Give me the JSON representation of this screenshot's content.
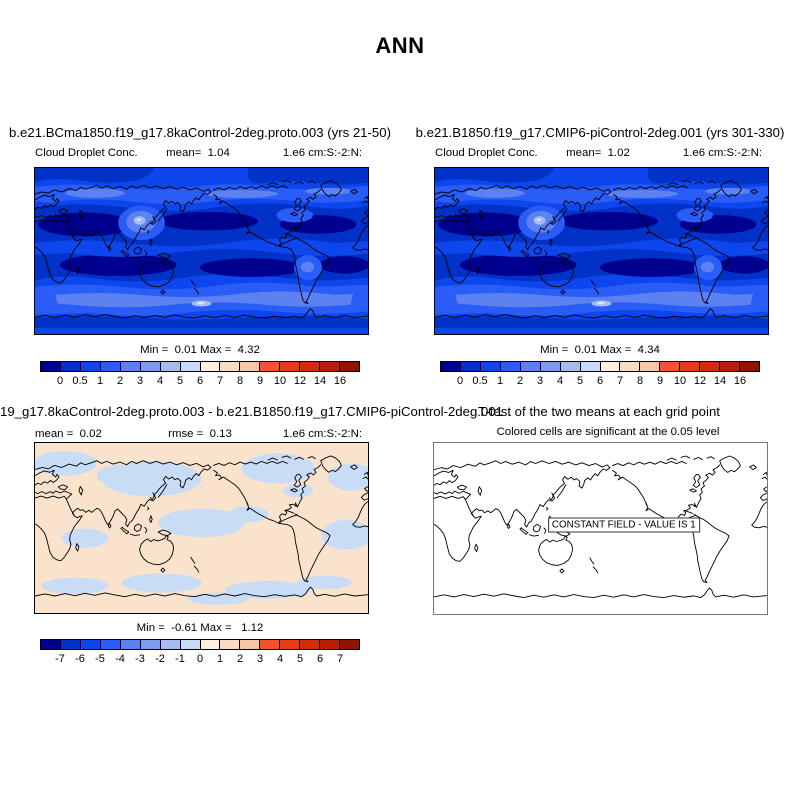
{
  "figure_title": "ANN",
  "colorbar_colors": [
    "#00008e",
    "#0032c8",
    "#0d46ec",
    "#2a5cf7",
    "#5b82f0",
    "#7d9cf0",
    "#a3bcf2",
    "#c9daf8",
    "#fdf0e2",
    "#fbdcc3",
    "#f8c5a5",
    "#f4512c",
    "#e93a16",
    "#d52b0a",
    "#bc1d04",
    "#8f1402"
  ],
  "chart_data": [
    {
      "type": "heatmap",
      "panel": "top-left",
      "title": "b.e21.BCma1850.f19_g17.8kaControl-2deg.proto.003 (yrs 21-50)",
      "variable": "Cloud Droplet Conc.",
      "units": "1.e6 cm:S:-2:N:",
      "mean": 1.04,
      "min": 0.01,
      "max": 4.32,
      "levels": [
        0,
        0.5,
        1,
        2,
        3,
        4,
        5,
        6,
        7,
        8,
        9,
        10,
        12,
        14,
        16
      ],
      "projection": "global cylindrical map, Pacific-centered",
      "palette": "blue-white-red"
    },
    {
      "type": "heatmap",
      "panel": "top-right",
      "title": "b.e21.B1850.f19_g17.CMIP6-piControl-2deg.001 (yrs 301-330)",
      "variable": "Cloud Droplet Conc.",
      "units": "1.e6 cm:S:-2:N:",
      "mean": 1.02,
      "min": 0.01,
      "max": 4.34,
      "levels": [
        0,
        0.5,
        1,
        2,
        3,
        4,
        5,
        6,
        7,
        8,
        9,
        10,
        12,
        14,
        16
      ],
      "projection": "global cylindrical map, Pacific-centered",
      "palette": "blue-white-red"
    },
    {
      "type": "heatmap",
      "panel": "bottom-left",
      "title": "19_g17.8kaControl-2deg.proto.003 - b.e21.B1850.f19_g17.CMIP6-piControl-2deg.001",
      "units": "1.e6 cm:S:-2:N:",
      "mean": 0.02,
      "rmse": 0.13,
      "min": -0.61,
      "max": 1.12,
      "levels": [
        -7,
        -6,
        -5,
        -4,
        -3,
        -2,
        -1,
        0,
        1,
        2,
        3,
        4,
        5,
        6,
        7
      ],
      "projection": "global cylindrical map, Pacific-centered",
      "palette": "blue-white-red"
    },
    {
      "type": "map",
      "panel": "bottom-right",
      "title": "T-test of the two means at each grid point",
      "subtitle": "Colored cells are significant at the 0.05 level",
      "annotation": "CONSTANT FIELD - VALUE IS 1",
      "content": "coastline outline only, no significant cells shaded"
    }
  ],
  "panels": {
    "top_left": {
      "case_title": "b.e21.BCma1850.f19_g17.8kaControl-2deg.proto.003 (yrs 21-50)",
      "variable": "Cloud Droplet Conc.",
      "mean_text": "mean=  1.04",
      "units": "1.e6 cm:S:-2:N:",
      "minmax": "Min =  0.01 Max =  4.32",
      "ticks": [
        "0",
        "0.5",
        "1",
        "2",
        "3",
        "4",
        "5",
        "6",
        "7",
        "8",
        "9",
        "10",
        "12",
        "14",
        "16"
      ]
    },
    "top_right": {
      "case_title": "b.e21.B1850.f19_g17.CMIP6-piControl-2deg.001 (yrs 301-330)",
      "variable": "Cloud Droplet Conc.",
      "mean_text": "mean=  1.02",
      "units": "1.e6 cm:S:-2:N:",
      "minmax": "Min =  0.01 Max =  4.34",
      "ticks": [
        "0",
        "0.5",
        "1",
        "2",
        "3",
        "4",
        "5",
        "6",
        "7",
        "8",
        "9",
        "10",
        "12",
        "14",
        "16"
      ]
    },
    "bottom_left": {
      "case_title": "19_g17.8kaControl-2deg.proto.003 - b.e21.B1850.f19_g17.CMIP6-piControl-2deg.001",
      "mean_text": "mean =  0.02",
      "rmse_text": "rmse =  0.13",
      "units": "1.e6 cm:S:-2:N:",
      "minmax": "Min =  -0.61 Max =   1.12",
      "ticks": [
        "-7",
        "-6",
        "-5",
        "-4",
        "-3",
        "-2",
        "-1",
        "0",
        "1",
        "2",
        "3",
        "4",
        "5",
        "6",
        "7"
      ]
    },
    "bottom_right": {
      "title": "T-test of the two means at each grid point",
      "subtitle": "Colored cells are significant at the 0.05 level",
      "const_label": "CONSTANT FIELD - VALUE IS 1"
    }
  }
}
